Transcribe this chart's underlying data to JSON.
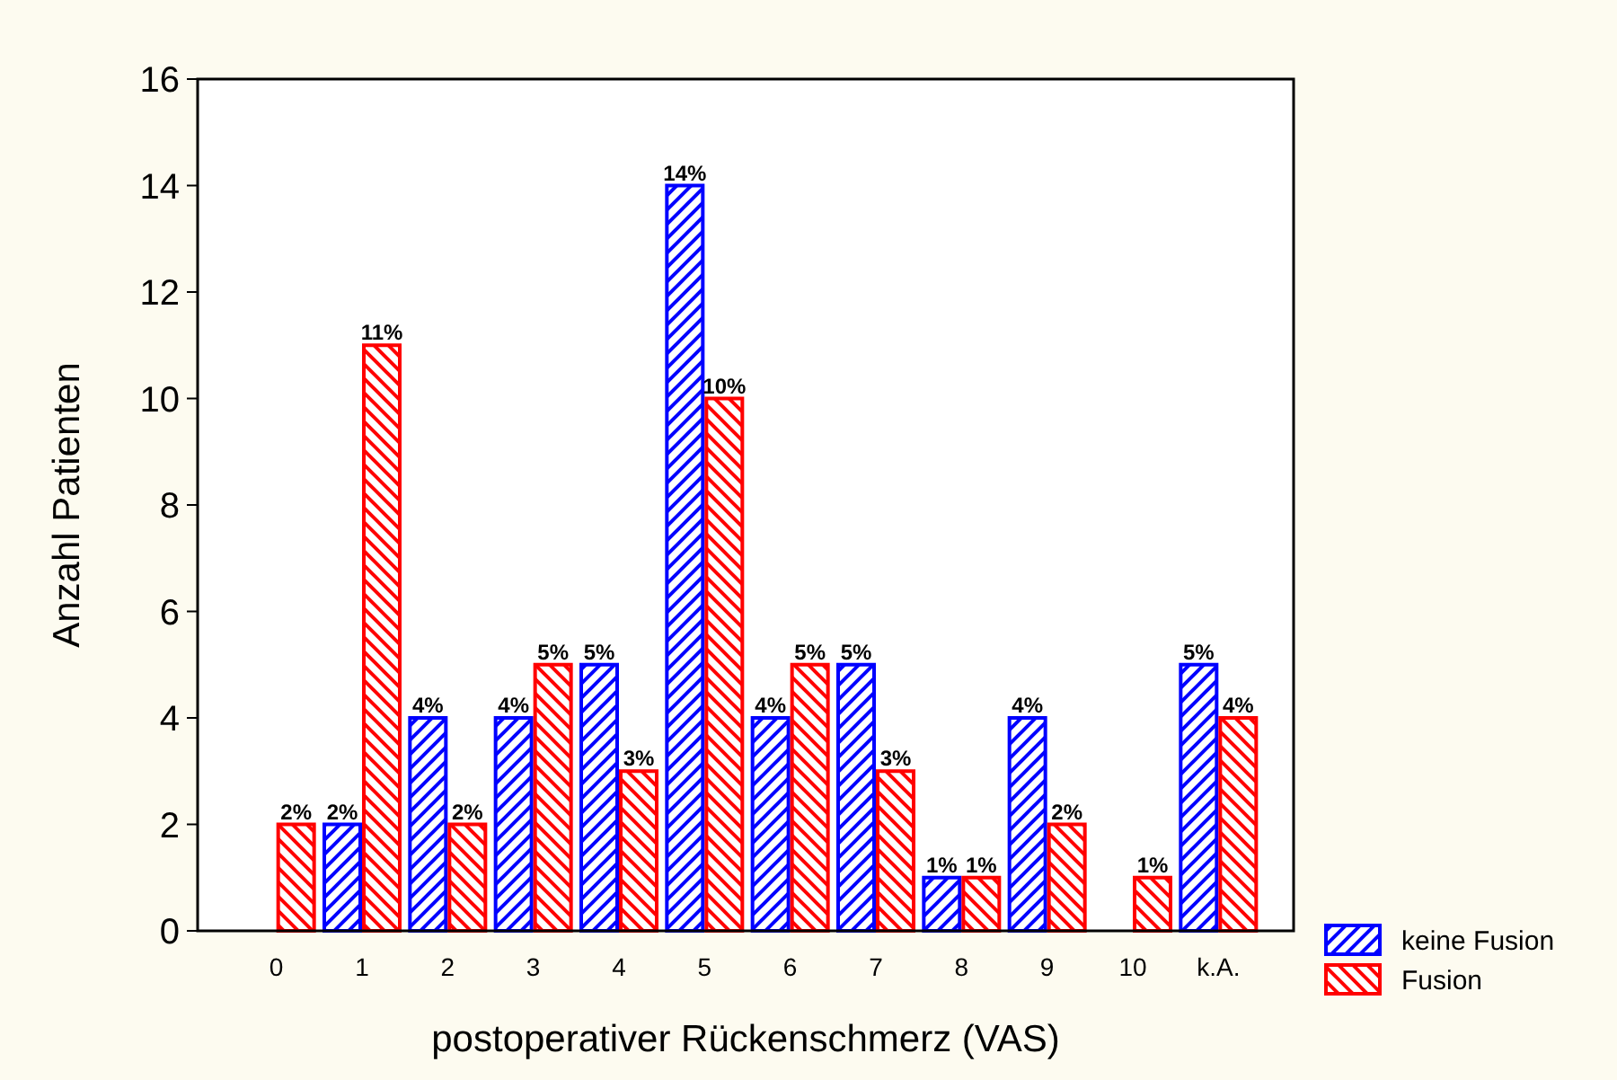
{
  "chart_data": {
    "type": "bar",
    "xlabel": "postoperativer Rückenschmerz (VAS)",
    "ylabel": "Anzahl Patienten",
    "categories": [
      "0",
      "1",
      "2",
      "3",
      "4",
      "5",
      "6",
      "7",
      "8",
      "9",
      "10",
      "k.A."
    ],
    "series": [
      {
        "name": "keine Fusion",
        "color": "#0000ff",
        "values": [
          null,
          2,
          4,
          4,
          5,
          14,
          4,
          5,
          1,
          4,
          null,
          5
        ],
        "value_labels": [
          null,
          "2%",
          "4%",
          "4%",
          "5%",
          "14%",
          "4%",
          "5%",
          "1%",
          "4%",
          null,
          "5%"
        ]
      },
      {
        "name": "Fusion",
        "color": "#ff0000",
        "values": [
          2,
          11,
          2,
          5,
          3,
          10,
          5,
          3,
          1,
          2,
          1,
          4
        ],
        "value_labels": [
          "2%",
          "11%",
          "2%",
          "5%",
          "3%",
          "10%",
          "5%",
          "3%",
          "1%",
          "2%",
          "1%",
          "4%"
        ]
      }
    ],
    "ylim": [
      0,
      16
    ],
    "yticks": [
      0,
      2,
      4,
      6,
      8,
      10,
      12,
      14,
      16
    ],
    "grid": false,
    "legend": "bottom right"
  }
}
